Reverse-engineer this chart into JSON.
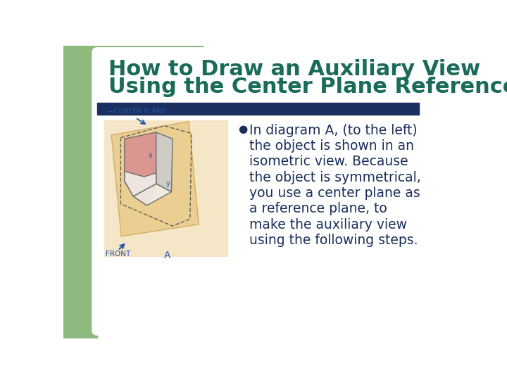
{
  "title_line1": "How to Draw an Auxiliary View",
  "title_line2": "Using the Center Plane Reference",
  "title_color": "#1a6b5a",
  "title_fontsize": 22,
  "bg_color": "#ffffff",
  "left_bar_color": "#8eba7e",
  "divider_color": "#1a3060",
  "bullet_color": "#1a2e5a",
  "bullet_fontsize": 13.5,
  "bullet_lines": [
    "In diagram A, (to the left)",
    "the object is shown in an",
    "isometric view. Because",
    "the object is symmetrical,",
    "you use a center plane as",
    "a reference plane, to",
    "make the auxiliary view",
    "using the following steps."
  ],
  "label_color": "#2255aa",
  "diagram_bg": "#f5e6c8",
  "plane_color": "#e8c880",
  "plane_edge": "#c8a050",
  "pink_color": "#d99090",
  "white_face": "#f0ede8",
  "gray_face": "#cccccc"
}
